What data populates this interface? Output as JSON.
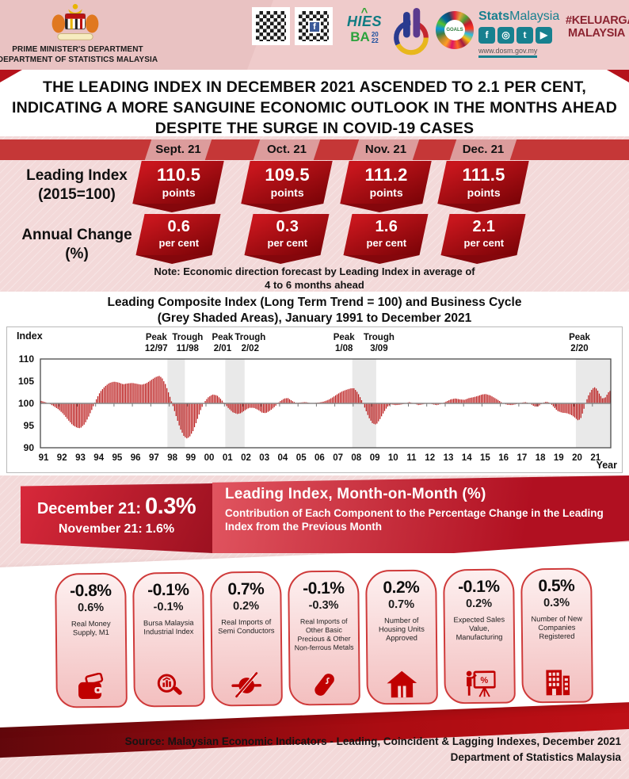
{
  "header": {
    "dept_line1": "PRIME MINISTER'S DEPARTMENT",
    "dept_line2": "DEPARTMENT OF STATISTICS MALAYSIA",
    "logos": {
      "hies": "HIES",
      "ba": "BA",
      "year_top": "20",
      "year_bottom": "22",
      "stats_bold": "Stats",
      "stats_rest": "Malaysia",
      "social_icons": [
        "facebook",
        "instagram",
        "twitter",
        "youtube"
      ],
      "social_glyphs": [
        "f",
        "◎",
        "t",
        "▶"
      ],
      "website": "www.dosm.gov.my",
      "sdg_label": "GOALS",
      "hashtag_line1": "#KELUARGA",
      "hashtag_line2": "MALAYSIA"
    }
  },
  "headline": {
    "line1": "THE LEADING INDEX IN DECEMBER 2021 ASCENDED TO 2.1 PER CENT,",
    "line2": "INDICATING A MORE SANGUINE ECONOMIC OUTLOOK IN THE MONTHS AHEAD",
    "line3": "DESPITE THE SURGE IN COVID-19 CASES"
  },
  "summary": {
    "months": [
      "Sept. 21",
      "Oct. 21",
      "Nov. 21",
      "Dec. 21"
    ],
    "rows": [
      {
        "label_line1": "Leading Index",
        "label_line2": "(2015=100)",
        "unit": "points",
        "values": [
          "110.5",
          "109.5",
          "111.2",
          "111.5"
        ]
      },
      {
        "label_line1": "Annual Change",
        "label_line2": "(%)",
        "unit": "per cent",
        "values": [
          "0.6",
          "0.3",
          "1.6",
          "2.1"
        ]
      }
    ],
    "note_line1": "Note: Economic direction forecast by Leading Index in average of",
    "note_line2": "4 to 6 months ahead"
  },
  "chart_data": {
    "type": "bar",
    "title_line1": "Leading Composite Index (Long Term Trend = 100) and Business Cycle",
    "title_line2": "(Grey Shaded Areas),  January 1991 to December 2021",
    "ylabel": "Index",
    "xlabel": "Year",
    "ylim": [
      90,
      110
    ],
    "yticks": [
      110,
      105,
      100,
      95,
      90
    ],
    "baseline": 100,
    "x_range": [
      1991,
      2022
    ],
    "x_tick_labels": [
      "91",
      "92",
      "93",
      "94",
      "95",
      "96",
      "97",
      "98",
      "99",
      "00",
      "01",
      "02",
      "03",
      "04",
      "05",
      "06",
      "07",
      "08",
      "09",
      "10",
      "11",
      "12",
      "13",
      "14",
      "15",
      "16",
      "17",
      "18",
      "19",
      "20",
      "21"
    ],
    "bar_color": "#b81414",
    "shade_color": "#e9e9e9",
    "grid": false,
    "shaded_areas": [
      [
        1997.9,
        1998.85
      ],
      [
        2001.05,
        2002.1
      ],
      [
        2007.95,
        2009.25
      ],
      [
        2020.1,
        2022.0
      ]
    ],
    "annotations": [
      {
        "label": "Peak",
        "date": "12/97",
        "label_x": 1997.3
      },
      {
        "label": "Trough",
        "date": "11/98",
        "label_x": 1999.0
      },
      {
        "label": "Peak",
        "date": "2/01",
        "label_x": 2000.9
      },
      {
        "label": "Trough",
        "date": "2/02",
        "label_x": 2002.4
      },
      {
        "label": "Peak",
        "date": "1/08",
        "label_x": 2007.5
      },
      {
        "label": "Trough",
        "date": "3/09",
        "label_x": 2009.4
      },
      {
        "label": "Peak",
        "date": "2/20",
        "label_x": 2020.3
      }
    ],
    "series_note": "Deviation of Leading Index from long-term trend (=100); piecewise-linear keypoints [year, index], monthly bars interpolated",
    "keypoints": [
      [
        1991.0,
        100.6
      ],
      [
        1991.25,
        100.3
      ],
      [
        1991.5,
        99.9
      ],
      [
        1991.75,
        99.3
      ],
      [
        1992.0,
        98.6
      ],
      [
        1992.25,
        97.6
      ],
      [
        1992.5,
        96.3
      ],
      [
        1992.75,
        95.1
      ],
      [
        1993.0,
        94.5
      ],
      [
        1993.17,
        94.4
      ],
      [
        1993.4,
        95.3
      ],
      [
        1993.6,
        96.8
      ],
      [
        1993.8,
        98.6
      ],
      [
        1994.0,
        100.6
      ],
      [
        1994.25,
        102.6
      ],
      [
        1994.5,
        103.8
      ],
      [
        1994.75,
        104.6
      ],
      [
        1995.0,
        104.9
      ],
      [
        1995.25,
        104.7
      ],
      [
        1995.5,
        104.3
      ],
      [
        1995.75,
        104.5
      ],
      [
        1996.0,
        104.6
      ],
      [
        1996.25,
        104.4
      ],
      [
        1996.5,
        104.2
      ],
      [
        1996.75,
        104.5
      ],
      [
        1997.0,
        105.2
      ],
      [
        1997.25,
        105.9
      ],
      [
        1997.45,
        106.2
      ],
      [
        1997.6,
        105.8
      ],
      [
        1997.8,
        104.3
      ],
      [
        1998.0,
        102.0
      ],
      [
        1998.2,
        99.5
      ],
      [
        1998.4,
        96.8
      ],
      [
        1998.6,
        94.3
      ],
      [
        1998.8,
        92.6
      ],
      [
        1998.95,
        92.1
      ],
      [
        1999.1,
        92.4
      ],
      [
        1999.3,
        93.8
      ],
      [
        1999.5,
        96.0
      ],
      [
        1999.7,
        98.4
      ],
      [
        1999.9,
        100.2
      ],
      [
        2000.1,
        101.3
      ],
      [
        2000.35,
        102.0
      ],
      [
        2000.6,
        101.8
      ],
      [
        2000.8,
        101.0
      ],
      [
        2001.0,
        100.0
      ],
      [
        2001.2,
        99.0
      ],
      [
        2001.45,
        98.0
      ],
      [
        2001.7,
        97.6
      ],
      [
        2001.9,
        97.8
      ],
      [
        2002.1,
        98.4
      ],
      [
        2002.35,
        99.0
      ],
      [
        2002.6,
        99.0
      ],
      [
        2002.85,
        98.5
      ],
      [
        2003.05,
        97.9
      ],
      [
        2003.25,
        97.8
      ],
      [
        2003.5,
        98.4
      ],
      [
        2003.75,
        99.3
      ],
      [
        2004.0,
        100.4
      ],
      [
        2004.25,
        101.1
      ],
      [
        2004.45,
        101.2
      ],
      [
        2004.7,
        100.5
      ],
      [
        2004.9,
        100.1
      ],
      [
        2005.15,
        100.2
      ],
      [
        2005.4,
        100.3
      ],
      [
        2005.65,
        100.1
      ],
      [
        2005.9,
        100.1
      ],
      [
        2006.15,
        100.2
      ],
      [
        2006.4,
        100.4
      ],
      [
        2006.65,
        100.8
      ],
      [
        2006.9,
        101.4
      ],
      [
        2007.15,
        102.1
      ],
      [
        2007.4,
        102.7
      ],
      [
        2007.65,
        103.1
      ],
      [
        2007.9,
        103.4
      ],
      [
        2008.05,
        103.4
      ],
      [
        2008.25,
        102.4
      ],
      [
        2008.45,
        100.8
      ],
      [
        2008.65,
        98.8
      ],
      [
        2008.85,
        96.8
      ],
      [
        2009.05,
        95.5
      ],
      [
        2009.25,
        95.2
      ],
      [
        2009.45,
        96.4
      ],
      [
        2009.65,
        97.9
      ],
      [
        2009.85,
        99.2
      ],
      [
        2010.05,
        99.8
      ],
      [
        2010.3,
        99.6
      ],
      [
        2010.55,
        99.7
      ],
      [
        2010.8,
        99.9
      ],
      [
        2011.05,
        100.3
      ],
      [
        2011.3,
        100.0
      ],
      [
        2011.55,
        99.6
      ],
      [
        2011.8,
        99.8
      ],
      [
        2012.05,
        100.1
      ],
      [
        2012.3,
        99.8
      ],
      [
        2012.55,
        99.6
      ],
      [
        2012.8,
        99.9
      ],
      [
        2013.05,
        100.4
      ],
      [
        2013.3,
        100.9
      ],
      [
        2013.55,
        101.1
      ],
      [
        2013.8,
        100.9
      ],
      [
        2014.05,
        100.8
      ],
      [
        2014.3,
        101.2
      ],
      [
        2014.55,
        101.4
      ],
      [
        2014.8,
        101.7
      ],
      [
        2015.0,
        102.0
      ],
      [
        2015.2,
        102.1
      ],
      [
        2015.45,
        101.8
      ],
      [
        2015.7,
        101.2
      ],
      [
        2015.9,
        100.7
      ],
      [
        2016.1,
        100.1
      ],
      [
        2016.35,
        99.7
      ],
      [
        2016.6,
        99.6
      ],
      [
        2016.85,
        99.8
      ],
      [
        2017.1,
        100.1
      ],
      [
        2017.35,
        100.3
      ],
      [
        2017.6,
        100.0
      ],
      [
        2017.85,
        99.3
      ],
      [
        2018.05,
        99.3
      ],
      [
        2018.3,
        100.1
      ],
      [
        2018.5,
        100.4
      ],
      [
        2018.7,
        100.1
      ],
      [
        2018.9,
        99.2
      ],
      [
        2019.1,
        98.3
      ],
      [
        2019.35,
        97.9
      ],
      [
        2019.6,
        97.8
      ],
      [
        2019.85,
        97.4
      ],
      [
        2020.05,
        96.8
      ],
      [
        2020.2,
        96.2
      ],
      [
        2020.35,
        96.4
      ],
      [
        2020.5,
        98.2
      ],
      [
        2020.65,
        100.3
      ],
      [
        2020.8,
        101.9
      ],
      [
        2020.95,
        103.0
      ],
      [
        2021.1,
        103.7
      ],
      [
        2021.25,
        103.2
      ],
      [
        2021.4,
        102.0
      ],
      [
        2021.55,
        101.1
      ],
      [
        2021.7,
        101.3
      ],
      [
        2021.8,
        102.0
      ],
      [
        2021.92,
        102.8
      ]
    ]
  },
  "month_on_month": {
    "current_label": "December 21:",
    "current_value": "0.3%",
    "previous_label": "November 21:",
    "previous_value": "1.6%",
    "heading": "Leading Index, Month-on-Month (%)",
    "subheading": "Contribution of Each Component to the Percentage Change in the Leading Index from the Previous Month",
    "components": [
      {
        "dec": "-0.8%",
        "nov": "0.6%",
        "name": "Real Money Supply, M1",
        "icon": "wallet-icon"
      },
      {
        "dec": "-0.1%",
        "nov": "-0.1%",
        "name": "Bursa Malaysia Industrial Index",
        "icon": "stock-index-magnifier-icon"
      },
      {
        "dec": "0.7%",
        "nov": "0.2%",
        "name": "Real Imports of Semi Conductors",
        "icon": "semiconductor-icon"
      },
      {
        "dec": "-0.1%",
        "nov": "-0.3%",
        "name": "Real Imports of Other Basic Precious & Other Non-ferrous Metals",
        "icon": "metal-ingot-icon"
      },
      {
        "dec": "0.2%",
        "nov": "0.7%",
        "name": "Number of Housing Units Approved",
        "icon": "house-icon"
      },
      {
        "dec": "-0.1%",
        "nov": "0.2%",
        "name": "Expected Sales Value, Manufacturing",
        "icon": "presentation-chart-icon"
      },
      {
        "dec": "0.5%",
        "nov": "0.3%",
        "name": "Number of New Companies Registered",
        "icon": "office-building-icon"
      }
    ]
  },
  "footer": {
    "source_line1": "Source: Malaysian Economic Indicators - Leading, Coincident & Lagging Indexes, December 2021",
    "source_line2": "Department of Statistics Malaysia"
  },
  "colors": {
    "page_pink": "#f3d9d9",
    "band_red": "#c53737",
    "month_box_pink": "#dc9c9c",
    "chevron_dark_red": "#85070c",
    "panel_red": "#c41b2e",
    "deep_red": "#7a0b10",
    "card_border_red": "#cf3a3a",
    "icon_red": "#c00000",
    "teal": "#17808f",
    "hashtag_maroon": "#8c2431"
  }
}
